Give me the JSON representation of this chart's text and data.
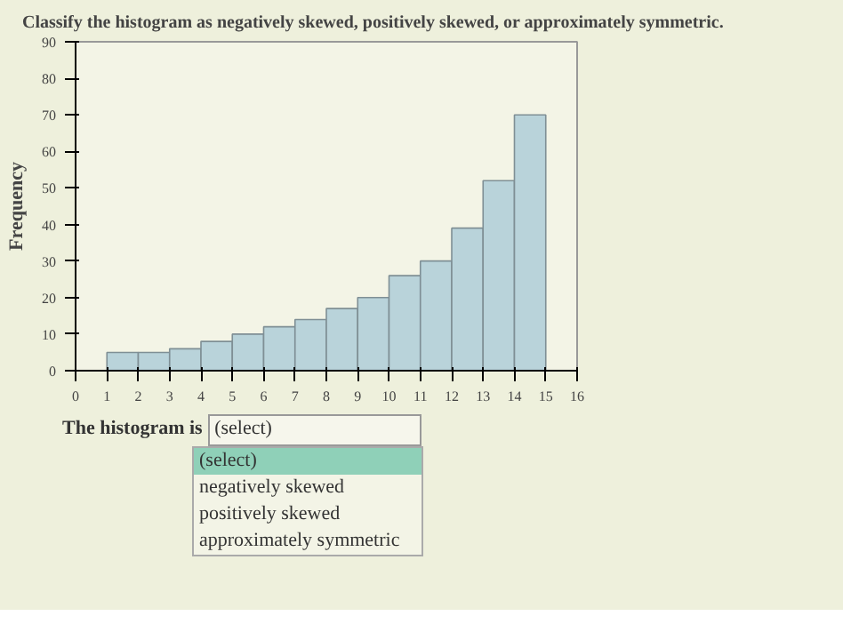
{
  "chart_data": {
    "type": "histogram",
    "title": "Classify the histogram as negatively skewed, positively skewed, or approximately symmetric.",
    "ylabel": "Frequency",
    "bins": [
      1,
      2,
      3,
      4,
      5,
      6,
      7,
      8,
      9,
      10,
      11,
      12,
      13,
      14,
      15
    ],
    "values": [
      5,
      5,
      6,
      8,
      10,
      12,
      14,
      17,
      20,
      26,
      30,
      39,
      52,
      70
    ],
    "color": "#b9d3da",
    "xlim": [
      0,
      16
    ],
    "xticks": [
      0,
      1,
      2,
      3,
      4,
      5,
      6,
      7,
      8,
      9,
      10,
      11,
      12,
      13,
      14,
      15,
      16
    ],
    "ylim": [
      0,
      90
    ],
    "yticks": [
      0,
      10,
      20,
      30,
      40,
      50,
      60,
      70,
      80,
      90
    ],
    "grid": false,
    "annotations": [
      "The histogram is",
      "(select)",
      "(select)",
      "negatively skewed",
      "positively skewed",
      "approximately symmetric"
    ]
  }
}
